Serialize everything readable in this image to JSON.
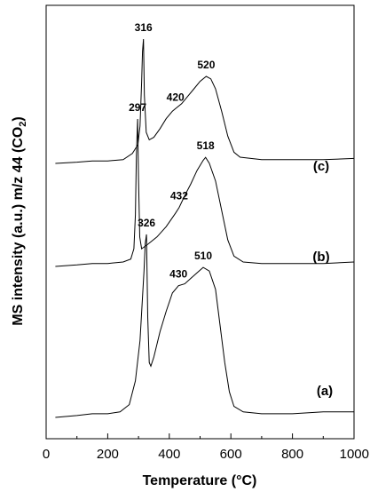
{
  "chart_data": {
    "type": "line",
    "xlabel": "Temperature (°C)",
    "ylabel_main": "MS intensity (a.u.) m/z 44 (CO",
    "ylabel_sub": "2",
    "ylabel_end": ")",
    "xlim": [
      0,
      1000
    ],
    "xticks": [
      "0",
      "200",
      "400",
      "600",
      "800",
      "1000"
    ],
    "grid": false,
    "series": [
      {
        "name": "(a)",
        "points": [
          [
            30,
            0.0
          ],
          [
            100,
            0.01
          ],
          [
            150,
            0.02
          ],
          [
            200,
            0.02
          ],
          [
            240,
            0.03
          ],
          [
            270,
            0.07
          ],
          [
            290,
            0.2
          ],
          [
            305,
            0.42
          ],
          [
            318,
            0.8
          ],
          [
            322,
            0.95
          ],
          [
            326,
            1.0
          ],
          [
            330,
            0.55
          ],
          [
            335,
            0.3
          ],
          [
            340,
            0.28
          ],
          [
            350,
            0.33
          ],
          [
            370,
            0.47
          ],
          [
            390,
            0.58
          ],
          [
            410,
            0.68
          ],
          [
            430,
            0.72
          ],
          [
            450,
            0.73
          ],
          [
            470,
            0.76
          ],
          [
            490,
            0.79
          ],
          [
            510,
            0.82
          ],
          [
            530,
            0.8
          ],
          [
            550,
            0.7
          ],
          [
            565,
            0.5
          ],
          [
            580,
            0.3
          ],
          [
            595,
            0.14
          ],
          [
            610,
            0.06
          ],
          [
            640,
            0.03
          ],
          [
            700,
            0.02
          ],
          [
            800,
            0.02
          ],
          [
            900,
            0.03
          ],
          [
            1000,
            0.03
          ]
        ],
        "peak_labels": [
          {
            "text": "326",
            "x": 326,
            "y": 1.0
          },
          {
            "text": "430",
            "x": 430,
            "y": 0.72
          },
          {
            "text": "510",
            "x": 510,
            "y": 0.82
          }
        ]
      },
      {
        "name": "(b)",
        "points": [
          [
            30,
            0.0
          ],
          [
            100,
            0.01
          ],
          [
            150,
            0.02
          ],
          [
            200,
            0.02
          ],
          [
            250,
            0.03
          ],
          [
            275,
            0.05
          ],
          [
            285,
            0.12
          ],
          [
            290,
            0.35
          ],
          [
            293,
            0.75
          ],
          [
            297,
            1.0
          ],
          [
            300,
            0.6
          ],
          [
            304,
            0.2
          ],
          [
            310,
            0.12
          ],
          [
            330,
            0.15
          ],
          [
            360,
            0.2
          ],
          [
            390,
            0.27
          ],
          [
            420,
            0.36
          ],
          [
            432,
            0.4
          ],
          [
            450,
            0.48
          ],
          [
            470,
            0.56
          ],
          [
            490,
            0.65
          ],
          [
            510,
            0.72
          ],
          [
            518,
            0.74
          ],
          [
            530,
            0.7
          ],
          [
            550,
            0.58
          ],
          [
            570,
            0.38
          ],
          [
            590,
            0.18
          ],
          [
            610,
            0.07
          ],
          [
            640,
            0.03
          ],
          [
            700,
            0.02
          ],
          [
            800,
            0.02
          ],
          [
            900,
            0.02
          ],
          [
            1000,
            0.03
          ]
        ],
        "peak_labels": [
          {
            "text": "297",
            "x": 297,
            "y": 1.0
          },
          {
            "text": "432",
            "x": 432,
            "y": 0.4
          },
          {
            "text": "518",
            "x": 518,
            "y": 0.74
          }
        ]
      },
      {
        "name": "(c)",
        "points": [
          [
            30,
            0.0
          ],
          [
            100,
            0.01
          ],
          [
            150,
            0.02
          ],
          [
            200,
            0.02
          ],
          [
            250,
            0.03
          ],
          [
            280,
            0.08
          ],
          [
            298,
            0.15
          ],
          [
            305,
            0.3
          ],
          [
            310,
            0.65
          ],
          [
            313,
            0.9
          ],
          [
            316,
            1.0
          ],
          [
            319,
            0.55
          ],
          [
            325,
            0.25
          ],
          [
            335,
            0.19
          ],
          [
            350,
            0.21
          ],
          [
            370,
            0.28
          ],
          [
            390,
            0.36
          ],
          [
            410,
            0.42
          ],
          [
            420,
            0.44
          ],
          [
            440,
            0.48
          ],
          [
            460,
            0.54
          ],
          [
            480,
            0.6
          ],
          [
            500,
            0.66
          ],
          [
            520,
            0.7
          ],
          [
            535,
            0.68
          ],
          [
            550,
            0.6
          ],
          [
            570,
            0.42
          ],
          [
            590,
            0.22
          ],
          [
            610,
            0.09
          ],
          [
            630,
            0.05
          ],
          [
            700,
            0.03
          ],
          [
            800,
            0.03
          ],
          [
            900,
            0.03
          ],
          [
            1000,
            0.04
          ]
        ],
        "peak_labels": [
          {
            "text": "316",
            "x": 316,
            "y": 1.0
          },
          {
            "text": "420",
            "x": 420,
            "y": 0.44
          },
          {
            "text": "520",
            "x": 520,
            "y": 0.7
          }
        ]
      }
    ]
  }
}
